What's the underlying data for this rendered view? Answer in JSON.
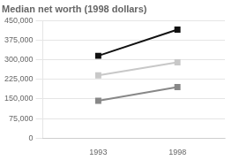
{
  "chart_data": {
    "type": "line",
    "title": "Median net worth (1998 dollars)",
    "x": [
      1993,
      1998
    ],
    "series": [
      {
        "color": "#111111",
        "marker": "square",
        "values": [
          315000,
          415000
        ]
      },
      {
        "color": "#c8c8c8",
        "marker": "square",
        "values": [
          240000,
          290000
        ]
      },
      {
        "color": "#888888",
        "marker": "square",
        "values": [
          143000,
          195000
        ]
      }
    ],
    "xlim": [
      1989.5,
      2001
    ],
    "xticks": [
      1993,
      1998
    ],
    "ylim": [
      0,
      450000
    ],
    "yticks": [
      0,
      {
        "value": 75000,
        "label": "75,000"
      },
      {
        "value": 150000,
        "label": "150,000"
      },
      {
        "value": 225000,
        "label": "225,000"
      },
      {
        "value": 300000,
        "label": "300,000"
      },
      {
        "value": 375000,
        "label": "375,000"
      },
      {
        "value": 450000,
        "label": "450,000"
      }
    ],
    "grid": "y"
  }
}
